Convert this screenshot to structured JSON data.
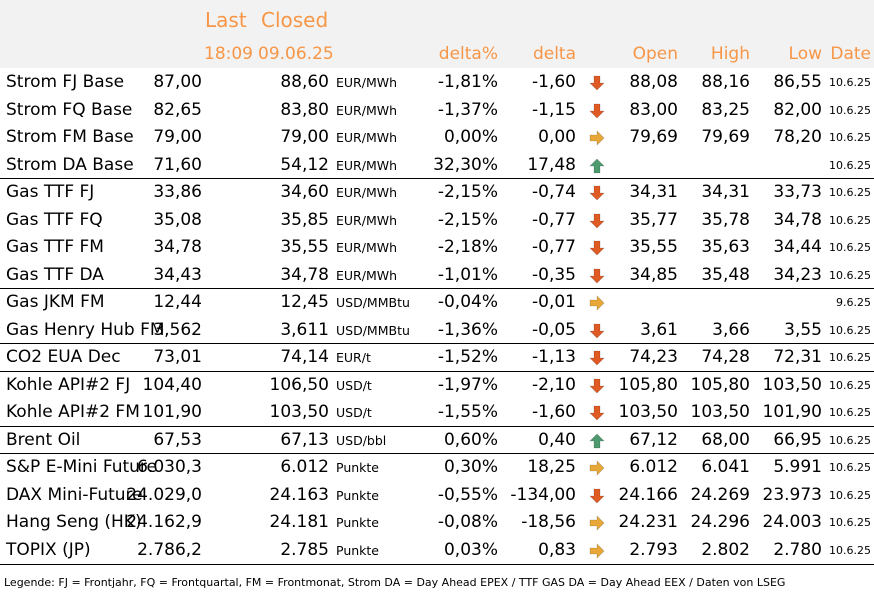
{
  "header": {
    "last": "Last",
    "closed": "Closed",
    "last_time": "18:09",
    "closed_date": "09.06.25",
    "delta_pct": "delta%",
    "delta": "delta",
    "open": "Open",
    "high": "High",
    "low": "Low",
    "date": "Date"
  },
  "rows": [
    {
      "name": "Strom FJ Base",
      "last": "87,00",
      "closed": "88,60",
      "unit": "EUR/MWh",
      "delta_pct": "-1,81%",
      "delta": "-1,60",
      "trend": "down",
      "open": "88,08",
      "high": "88,16",
      "low": "86,55",
      "date": "10.6.25"
    },
    {
      "name": "Strom FQ Base",
      "last": "82,65",
      "closed": "83,80",
      "unit": "EUR/MWh",
      "delta_pct": "-1,37%",
      "delta": "-1,15",
      "trend": "down",
      "open": "83,00",
      "high": "83,25",
      "low": "82,00",
      "date": "10.6.25"
    },
    {
      "name": "Strom FM Base",
      "last": "79,00",
      "closed": "79,00",
      "unit": "EUR/MWh",
      "delta_pct": "0,00%",
      "delta": "0,00",
      "trend": "flat",
      "open": "79,69",
      "high": "79,69",
      "low": "78,20",
      "date": "10.6.25"
    },
    {
      "name": "Strom DA Base",
      "last": "71,60",
      "closed": "54,12",
      "unit": "EUR/MWh",
      "delta_pct": "32,30%",
      "delta": "17,48",
      "trend": "up",
      "open": "",
      "high": "",
      "low": "",
      "date": "10.6.25"
    },
    {
      "name": "Gas TTF FJ",
      "last": "33,86",
      "closed": "34,60",
      "unit": "EUR/MWh",
      "delta_pct": "-2,15%",
      "delta": "-0,74",
      "trend": "down",
      "open": "34,31",
      "high": "34,31",
      "low": "33,73",
      "date": "10.6.25"
    },
    {
      "name": "Gas TTF FQ",
      "last": "35,08",
      "closed": "35,85",
      "unit": "EUR/MWh",
      "delta_pct": "-2,15%",
      "delta": "-0,77",
      "trend": "down",
      "open": "35,77",
      "high": "35,78",
      "low": "34,78",
      "date": "10.6.25"
    },
    {
      "name": "Gas TTF FM",
      "last": "34,78",
      "closed": "35,55",
      "unit": "EUR/MWh",
      "delta_pct": "-2,18%",
      "delta": "-0,77",
      "trend": "down",
      "open": "35,55",
      "high": "35,63",
      "low": "34,44",
      "date": "10.6.25"
    },
    {
      "name": "Gas TTF DA",
      "last": "34,43",
      "closed": "34,78",
      "unit": "EUR/MWh",
      "delta_pct": "-1,01%",
      "delta": "-0,35",
      "trend": "down",
      "open": "34,85",
      "high": "35,48",
      "low": "34,23",
      "date": "10.6.25"
    },
    {
      "name": "Gas JKM FM",
      "last": "12,44",
      "closed": "12,45",
      "unit": "USD/MMBtu",
      "delta_pct": "-0,04%",
      "delta": "-0,01",
      "trend": "flat",
      "open": "",
      "high": "",
      "low": "",
      "date": "9.6.25"
    },
    {
      "name": "Gas Henry Hub FM",
      "last": "3,562",
      "closed": "3,611",
      "unit": "USD/MMBtu",
      "delta_pct": "-1,36%",
      "delta": "-0,05",
      "trend": "down",
      "open": "3,61",
      "high": "3,66",
      "low": "3,55",
      "date": "10.6.25"
    },
    {
      "name": "CO2 EUA Dec",
      "last": "73,01",
      "closed": "74,14",
      "unit": "EUR/t",
      "delta_pct": "-1,52%",
      "delta": "-1,13",
      "trend": "down",
      "open": "74,23",
      "high": "74,28",
      "low": "72,31",
      "date": "10.6.25"
    },
    {
      "name": "Kohle API#2 FJ",
      "last": "104,40",
      "closed": "106,50",
      "unit": "USD/t",
      "delta_pct": "-1,97%",
      "delta": "-2,10",
      "trend": "down",
      "open": "105,80",
      "high": "105,80",
      "low": "103,50",
      "date": "10.6.25"
    },
    {
      "name": "Kohle API#2 FM",
      "last": "101,90",
      "closed": "103,50",
      "unit": "USD/t",
      "delta_pct": "-1,55%",
      "delta": "-1,60",
      "trend": "down",
      "open": "103,50",
      "high": "103,50",
      "low": "101,90",
      "date": "10.6.25"
    },
    {
      "name": "Brent Oil",
      "last": "67,53",
      "closed": "67,13",
      "unit": "USD/bbl",
      "delta_pct": "0,60%",
      "delta": "0,40",
      "trend": "up",
      "open": "67,12",
      "high": "68,00",
      "low": "66,95",
      "date": "10.6.25"
    },
    {
      "name": "S&P E-Mini Future",
      "last": "6.030,3",
      "closed": "6.012",
      "unit": "Punkte",
      "delta_pct": "0,30%",
      "delta": "18,25",
      "trend": "flat",
      "open": "6.012",
      "high": "6.041",
      "low": "5.991",
      "date": "10.6.25"
    },
    {
      "name": "DAX Mini-Future",
      "last": "24.029,0",
      "closed": "24.163",
      "unit": "Punkte",
      "delta_pct": "-0,55%",
      "delta": "-134,00",
      "trend": "down",
      "open": "24.166",
      "high": "24.269",
      "low": "23.973",
      "date": "10.6.25"
    },
    {
      "name": "Hang Seng (HK)",
      "last": "24.162,9",
      "closed": "24.181",
      "unit": "Punkte",
      "delta_pct": "-0,08%",
      "delta": "-18,56",
      "trend": "flat",
      "open": "24.231",
      "high": "24.296",
      "low": "24.003",
      "date": "10.6.25"
    },
    {
      "name": "TOPIX (JP)",
      "last": "2.786,2",
      "closed": "2.785",
      "unit": "Punkte",
      "delta_pct": "0,03%",
      "delta": "0,83",
      "trend": "flat",
      "open": "2.793",
      "high": "2.802",
      "low": "2.780",
      "date": "10.6.25"
    }
  ],
  "colors": {
    "header_text": "#f79646",
    "arrow_down": "#e05a24",
    "arrow_up": "#4e9a6f",
    "arrow_flat": "#e8a838",
    "alt_row": "#f2f2f2"
  },
  "legend": "Legende: FJ = Frontjahr, FQ = Frontquartal, FM = Frontmonat, Strom DA = Day Ahead EPEX / TTF GAS DA = Day Ahead EEX / Daten von LSEG"
}
